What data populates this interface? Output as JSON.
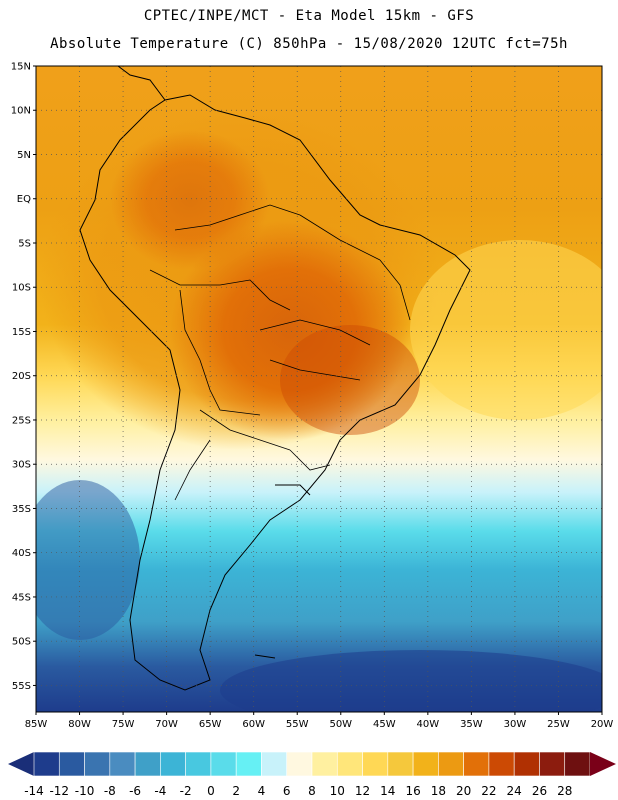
{
  "header": {
    "line1": "CPTEC/INPE/MCT -   Eta Model 15km - GFS",
    "line2": "Absolute Temperature (C) 850hPa - 15/08/2020 12UTC fct=75h"
  },
  "map": {
    "region": "South America",
    "lat_labels": [
      "15N",
      "10N",
      "5N",
      "EQ",
      "5S",
      "10S",
      "15S",
      "20S",
      "25S",
      "30S",
      "35S",
      "40S",
      "45S",
      "50S",
      "55S"
    ],
    "lon_labels": [
      "85W",
      "80W",
      "75W",
      "70W",
      "65W",
      "60W",
      "55W",
      "50W",
      "45W",
      "40W",
      "35W",
      "30W",
      "25W",
      "20W"
    ],
    "lat_range": [
      15,
      -58
    ],
    "lon_range": [
      -85,
      -20
    ]
  },
  "colorbar": {
    "labels": [
      "-14",
      "-12",
      "-10",
      "-8",
      "-6",
      "-4",
      "-2",
      "0",
      "2",
      "4",
      "6",
      "8",
      "10",
      "12",
      "14",
      "16",
      "18",
      "20",
      "22",
      "24",
      "26",
      "28"
    ],
    "colors": [
      "#1e3c8c",
      "#2a5aa0",
      "#3a74b0",
      "#4a8cc0",
      "#3fa0c8",
      "#3cb4d6",
      "#48c8e0",
      "#5adcea",
      "#66f0f4",
      "#c8f2fa",
      "#fff8e0",
      "#fff0a0",
      "#ffe67a",
      "#ffd855",
      "#f5c83c",
      "#f2b21a",
      "#ec9a12",
      "#e27008",
      "#cc4a04",
      "#b03002",
      "#8c1c0e",
      "#6e1010"
    ],
    "min_arrow_color": "#1a2e78",
    "max_arrow_color": "#7a0018"
  }
}
